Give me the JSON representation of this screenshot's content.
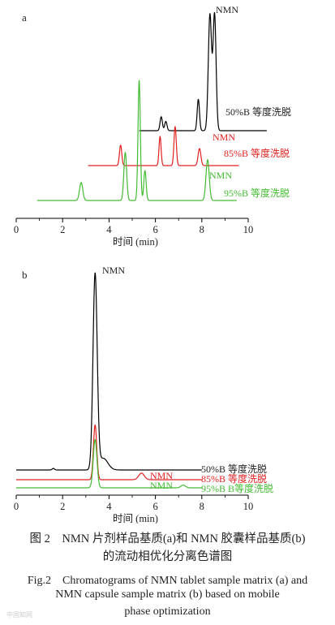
{
  "chart_data": [
    {
      "panel_label": "a",
      "type": "line",
      "xlabel": "时间 (min)",
      "xlim": [
        0,
        10
      ],
      "xticks": [
        "0",
        "2",
        "4",
        "6",
        "8",
        "10"
      ],
      "series": [
        {
          "name": "50%B 等度洗脱",
          "color": "#000000",
          "x_range": [
            5.3,
            10.8
          ],
          "baseline": 0.0,
          "peaks": [
            {
              "rt": 6.25,
              "height": 0.12,
              "width": 0.05
            },
            {
              "rt": 6.45,
              "height": 0.08,
              "width": 0.05
            },
            {
              "rt": 7.85,
              "height": 0.27,
              "width": 0.05
            },
            {
              "rt": 8.35,
              "height": 1.0,
              "width": 0.07
            },
            {
              "rt": 8.55,
              "height": 1.0,
              "width": 0.065
            }
          ],
          "peak_label": "NMN"
        },
        {
          "name": "85%B 等度洗脱",
          "color": "#e02020",
          "x_range": [
            3.1,
            9.6
          ],
          "baseline": 0.0,
          "peaks": [
            {
              "rt": 4.5,
              "height": 0.42,
              "width": 0.05
            },
            {
              "rt": 6.2,
              "height": 0.6,
              "width": 0.045
            },
            {
              "rt": 6.85,
              "height": 0.8,
              "width": 0.05
            },
            {
              "rt": 7.9,
              "height": 0.35,
              "width": 0.06
            }
          ],
          "peak_label": "NMN"
        },
        {
          "name": "95%B 等度洗脱",
          "color": "#44bb33",
          "x_range": [
            0.9,
            9.5
          ],
          "baseline": 0.0,
          "peaks": [
            {
              "rt": 2.8,
              "height": 0.15,
              "width": 0.07
            },
            {
              "rt": 4.7,
              "height": 0.4,
              "width": 0.06
            },
            {
              "rt": 5.3,
              "height": 1.0,
              "width": 0.05
            },
            {
              "rt": 5.55,
              "height": 0.25,
              "width": 0.05
            },
            {
              "rt": 8.25,
              "height": 0.34,
              "width": 0.07
            }
          ],
          "peak_label": "NMN"
        }
      ]
    },
    {
      "panel_label": "b",
      "type": "line",
      "xlabel": "时间 (min)",
      "xlim": [
        0,
        10
      ],
      "xticks": [
        "0",
        "2",
        "4",
        "6",
        "8",
        "10"
      ],
      "series": [
        {
          "name": "50%B 等度洗脱",
          "color": "#000000",
          "x_range": [
            0.0,
            8.0
          ],
          "baseline": 0.0,
          "peaks": [
            {
              "rt": 3.4,
              "height": 1.0,
              "width": 0.09
            },
            {
              "rt": 3.75,
              "height": 0.06,
              "width": 0.2
            },
            {
              "rt": 1.6,
              "height": 0.008,
              "width": 0.05
            }
          ],
          "peak_label": "NMN"
        },
        {
          "name": "85%B 等度洗脱",
          "color": "#e02020",
          "x_range": [
            0.0,
            8.0
          ],
          "baseline": 0.0,
          "peaks": [
            {
              "rt": 3.4,
              "height": 0.25,
              "width": 0.07
            },
            {
              "rt": 5.4,
              "height": 0.03,
              "width": 0.12
            }
          ],
          "peak_label": "NMN"
        },
        {
          "name": "95%B B等度洗脱",
          "color": "#44bb33",
          "x_range": [
            0.0,
            8.0
          ],
          "baseline": 0.0,
          "peaks": [
            {
              "rt": 3.4,
              "height": 0.18,
              "width": 0.08
            },
            {
              "rt": 7.2,
              "height": 0.01,
              "width": 0.1
            }
          ],
          "peak_label": "NMN"
        }
      ]
    }
  ],
  "caption": {
    "cn_line1": "图 2　NMN 片剂样品基质(a)和 NMN 胶囊样品基质(b)",
    "cn_line2": "的流动相优化分离色谱图",
    "en_line1": "Fig.2　Chromatograms of NMN tablet sample matrix (a) and",
    "en_line2": "NMN capsule sample matrix (b) based on mobile",
    "en_line3": "phase optimization"
  },
  "watermark": "中国知网"
}
